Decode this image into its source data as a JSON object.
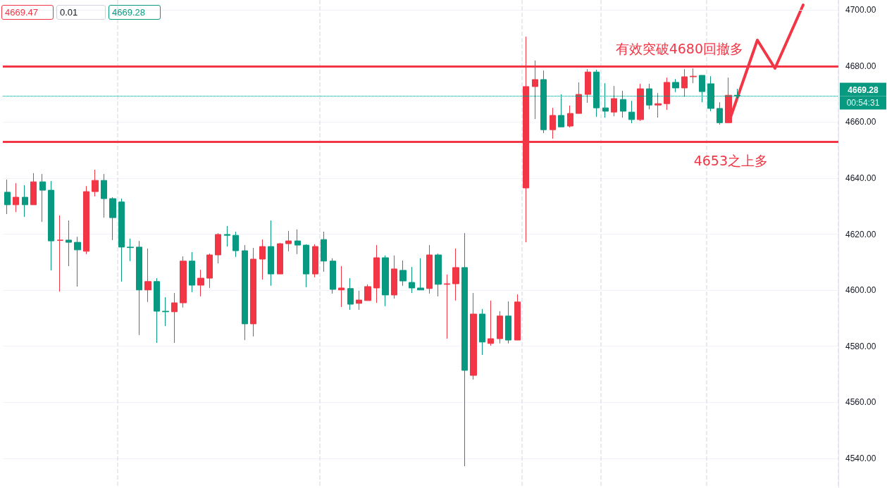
{
  "chart_data": {
    "type": "candlestick",
    "categories": [
      null,
      null,
      null,
      null,
      null,
      null,
      null,
      null,
      null,
      null,
      null,
      null,
      null,
      null,
      null,
      null,
      null,
      null,
      null,
      null,
      null,
      null,
      null,
      null,
      null,
      null,
      null,
      null,
      null,
      null,
      null,
      null,
      null,
      null,
      null,
      null,
      null,
      null,
      null,
      null,
      null,
      null,
      null,
      null,
      null,
      null,
      null,
      null,
      null,
      null,
      null,
      null,
      null,
      null,
      null,
      null,
      null,
      null,
      null,
      null,
      null,
      null,
      null,
      null,
      null,
      null,
      null,
      null,
      null,
      null,
      null,
      null,
      null,
      null,
      null,
      null,
      null,
      null,
      null,
      null,
      null,
      null,
      null,
      null,
      null,
      null,
      null,
      null,
      null,
      null,
      null,
      null,
      null,
      null,
      null
    ],
    "ohlc": [
      [
        4635.0,
        4639.5,
        4627.2,
        4630.5
      ],
      [
        4630.5,
        4638.2,
        4627.9,
        4633.2
      ],
      [
        4633.2,
        4637.5,
        4626.2,
        4630.5
      ],
      [
        4630.5,
        4641.8,
        4630.5,
        4638.7
      ],
      [
        4638.7,
        4641.5,
        4624.4,
        4635.7
      ],
      [
        4635.7,
        4639.0,
        4607.1,
        4617.6
      ],
      [
        4617.8,
        4626.7,
        4599.5,
        4617.9
      ],
      [
        4617.9,
        4624.9,
        4608.6,
        4617.1
      ],
      [
        4617.1,
        4619.1,
        4601.3,
        4614.4
      ],
      [
        4613.9,
        4637.2,
        4612.9,
        4635.2
      ],
      [
        4635.2,
        4643.0,
        4633.5,
        4639.2
      ],
      [
        4639.2,
        4641.5,
        4625.9,
        4632.7
      ],
      [
        4632.7,
        4633.2,
        4617.9,
        4625.9
      ],
      [
        4631.5,
        4632.7,
        4603.1,
        4615.4
      ],
      [
        4615.4,
        4618.4,
        4610.4,
        4615.2
      ],
      [
        4615.4,
        4617.6,
        4584.0,
        4600.1
      ],
      [
        4600.1,
        4614.9,
        4595.8,
        4603.1
      ],
      [
        4603.1,
        4604.3,
        4581.2,
        4592.5
      ],
      [
        4592.5,
        4597.5,
        4587.2,
        4592.3
      ],
      [
        4592.3,
        4599.0,
        4581.2,
        4595.5
      ],
      [
        4595.5,
        4612.1,
        4593.8,
        4610.4
      ],
      [
        4610.4,
        4613.6,
        4599.3,
        4601.8
      ],
      [
        4601.8,
        4607.3,
        4597.8,
        4604.3
      ],
      [
        4604.3,
        4613.1,
        4600.8,
        4612.6
      ],
      [
        4612.6,
        4620.4,
        4609.6,
        4619.9
      ],
      [
        4619.9,
        4622.9,
        4615.6,
        4619.6
      ],
      [
        4619.6,
        4620.9,
        4611.9,
        4614.1
      ],
      [
        4614.1,
        4616.1,
        4582.2,
        4588.0
      ],
      [
        4588.0,
        4615.1,
        4583.5,
        4611.1
      ],
      [
        4611.1,
        4618.1,
        4603.8,
        4615.6
      ],
      [
        4615.6,
        4624.9,
        4601.6,
        4605.8
      ],
      [
        4605.8,
        4616.9,
        4605.8,
        4616.6
      ],
      [
        4616.6,
        4621.2,
        4613.9,
        4617.6
      ],
      [
        4617.6,
        4621.7,
        4612.9,
        4616.1
      ],
      [
        4616.1,
        4616.4,
        4601.1,
        4605.8
      ],
      [
        4605.8,
        4616.4,
        4604.6,
        4615.6
      ],
      [
        4618.1,
        4620.9,
        4606.6,
        4610.4
      ],
      [
        4610.4,
        4611.4,
        4598.8,
        4600.3
      ],
      [
        4600.1,
        4608.6,
        4594.0,
        4600.8
      ],
      [
        4600.6,
        4604.3,
        4593.0,
        4595.0
      ],
      [
        4595.3,
        4599.8,
        4593.0,
        4596.5
      ],
      [
        4596.3,
        4602.1,
        4596.3,
        4601.3
      ],
      [
        4600.8,
        4616.1,
        4595.5,
        4611.6
      ],
      [
        4611.6,
        4612.4,
        4594.3,
        4598.3
      ],
      [
        4598.3,
        4612.4,
        4597.0,
        4607.6
      ],
      [
        4607.1,
        4610.6,
        4601.6,
        4603.3
      ],
      [
        4602.8,
        4608.3,
        4599.0,
        4600.8
      ],
      [
        4600.8,
        4611.4,
        4600.1,
        4600.1
      ],
      [
        4600.6,
        4616.1,
        4598.8,
        4612.6
      ],
      [
        4612.6,
        4613.1,
        4597.8,
        4602.1
      ],
      [
        4602.1,
        4605.6,
        4582.7,
        4602.3
      ],
      [
        4602.3,
        4614.9,
        4596.3,
        4608.1
      ],
      [
        4608.1,
        4620.4,
        4537.2,
        4571.4
      ],
      [
        4569.6,
        4599.0,
        4568.1,
        4591.5
      ],
      [
        4591.5,
        4593.3,
        4576.9,
        4581.5
      ],
      [
        4581.0,
        4596.3,
        4580.2,
        4582.7
      ],
      [
        4582.7,
        4592.5,
        4581.0,
        4590.8
      ],
      [
        4590.8,
        4596.0,
        4581.0,
        4582.2
      ],
      [
        4582.2,
        4598.5,
        4582.2,
        4595.8
      ],
      [
        4636.5,
        4690.5,
        4617.1,
        4672.7
      ],
      [
        4672.7,
        4682.0,
        4661.1,
        4675.2
      ],
      [
        4675.2,
        4678.4,
        4656.1,
        4657.3
      ],
      [
        4657.3,
        4665.1,
        4654.1,
        4662.4
      ],
      [
        4662.4,
        4669.9,
        4658.3,
        4658.3
      ],
      [
        4658.6,
        4665.9,
        4658.1,
        4663.1
      ],
      [
        4663.1,
        4674.2,
        4663.1,
        4669.9
      ],
      [
        4669.9,
        4678.9,
        4666.9,
        4677.9
      ],
      [
        4677.9,
        4678.7,
        4661.9,
        4665.1
      ],
      [
        4665.1,
        4673.9,
        4661.6,
        4663.9
      ],
      [
        4663.6,
        4672.9,
        4662.1,
        4668.4
      ],
      [
        4668.1,
        4671.2,
        4661.6,
        4663.9
      ],
      [
        4663.6,
        4667.6,
        4659.6,
        4660.9
      ],
      [
        4660.9,
        4673.7,
        4660.4,
        4671.9
      ],
      [
        4671.9,
        4673.7,
        4664.6,
        4666.1
      ],
      [
        4666.1,
        4670.4,
        4661.6,
        4666.6
      ],
      [
        4666.6,
        4675.9,
        4664.4,
        4674.2
      ],
      [
        4674.2,
        4675.4,
        4670.7,
        4672.2
      ],
      [
        4672.2,
        4678.9,
        4669.1,
        4676.2
      ],
      [
        4676.2,
        4679.2,
        4673.9,
        4676.4
      ],
      [
        4676.7,
        4676.7,
        4667.1,
        4670.9
      ],
      [
        4673.7,
        4676.4,
        4663.9,
        4664.9
      ],
      [
        4664.9,
        4667.1,
        4659.1,
        4659.8
      ],
      [
        4659.8,
        4675.9,
        4659.8,
        4669.6
      ],
      [
        4669.6,
        4671.9,
        4668.4,
        4669.28
      ],
      null,
      null,
      null,
      null,
      null,
      null,
      null,
      null,
      null,
      null,
      null
    ],
    "ylim": [
      4529.4,
      4703.6
    ],
    "yticks": [
      {
        "value": 4540,
        "label": "4540.00"
      },
      {
        "value": 4560,
        "label": "4560.00"
      },
      {
        "value": 4580,
        "label": "4580.00"
      },
      {
        "value": 4600,
        "label": "4600.00"
      },
      {
        "value": 4620,
        "label": "4620.00"
      },
      {
        "value": 4640,
        "label": "4640.00"
      },
      {
        "value": 4660,
        "label": "4660.00"
      },
      {
        "value": 4680,
        "label": "4680.00"
      },
      {
        "value": 4700,
        "label": "4700.00"
      }
    ],
    "tick_labels": "y",
    "grid": "y",
    "ref_lines": [
      {
        "axis": "y",
        "value": 4680,
        "label": "有效突破4680回撤多",
        "color": "#f23645",
        "line_style": "solid"
      },
      {
        "axis": "y",
        "value": 4653,
        "label": "4653之上多",
        "color": "#f23645",
        "line_style": "solid"
      },
      {
        "axis": "y",
        "value": 4669.28,
        "label": "4669.28",
        "color": "#089981",
        "line_style": "dotted"
      }
    ],
    "annotations": [
      "4669.47",
      "0.01",
      "4669.28",
      "00:54:31"
    ]
  }
}
